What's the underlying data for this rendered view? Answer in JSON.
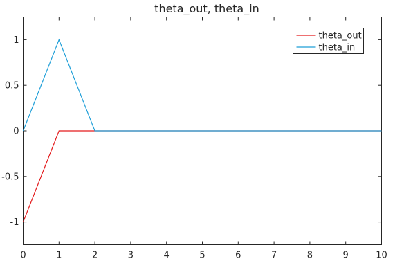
{
  "chart_data": {
    "type": "line",
    "title": "theta_out, theta_in",
    "xlabel": "",
    "ylabel": "",
    "xlim": [
      0,
      10
    ],
    "ylim": [
      -1.25,
      1.25
    ],
    "xticks": [
      0,
      1,
      2,
      3,
      4,
      5,
      6,
      7,
      8,
      9,
      10
    ],
    "xtick_labels": [
      "0",
      "1",
      "2",
      "3",
      "4",
      "5",
      "6",
      "7",
      "8",
      "9",
      "10"
    ],
    "yticks": [
      1,
      0.5,
      0,
      -0.5,
      -1
    ],
    "ytick_labels": [
      "1",
      "0.5",
      "0",
      "-0.5",
      "-1"
    ],
    "grid": false,
    "legend_position": "top-right",
    "series": [
      {
        "name": "theta_out",
        "color": "#e31a1c",
        "x": [
          0,
          1,
          2,
          10
        ],
        "y": [
          -1,
          0,
          0,
          0
        ]
      },
      {
        "name": "theta_in",
        "color": "#1f9fd8",
        "x": [
          0,
          1,
          2,
          10
        ],
        "y": [
          0,
          1,
          0,
          0
        ]
      }
    ]
  }
}
